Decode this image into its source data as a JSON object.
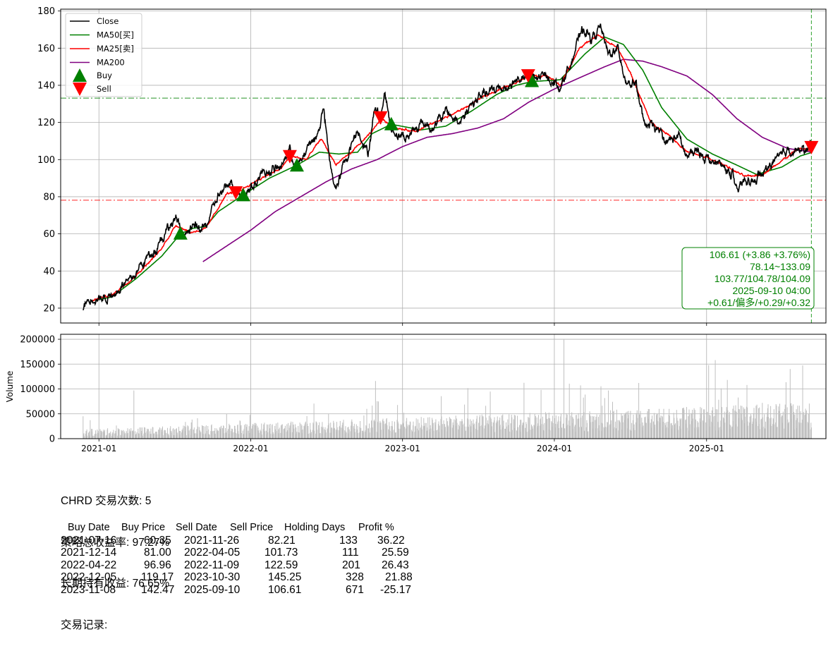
{
  "chart_data": [
    {
      "type": "line",
      "panel": "price",
      "ylim": [
        12,
        181
      ],
      "yticks": [
        20,
        40,
        60,
        80,
        100,
        120,
        140,
        160,
        180
      ],
      "grid": true,
      "legend_placement": "top-left",
      "legend": [
        "Close",
        "MA50[买]",
        "MA25[卖]",
        "MA200",
        "Buy",
        "Sell"
      ],
      "colors": {
        "close": "#000000",
        "ma50": "#008000",
        "ma25": "#ff0000",
        "ma200": "#800080",
        "buy": "#008000",
        "sell": "#ff0000",
        "grid": "#b0b0b0"
      },
      "close_anchors": [
        [
          "2020-11-24",
          20
        ],
        [
          "2020-12-15",
          25
        ],
        [
          "2021-01-15",
          25
        ],
        [
          "2021-02-15",
          30
        ],
        [
          "2021-03-15",
          38
        ],
        [
          "2021-04-15",
          44
        ],
        [
          "2021-05-15",
          52
        ],
        [
          "2021-06-15",
          62
        ],
        [
          "2021-07-10",
          67
        ],
        [
          "2021-07-20",
          58
        ],
        [
          "2021-08-15",
          62
        ],
        [
          "2021-09-15",
          66
        ],
        [
          "2021-10-15",
          80
        ],
        [
          "2021-11-10",
          86
        ],
        [
          "2021-11-26",
          82
        ],
        [
          "2021-12-14",
          80
        ],
        [
          "2022-01-15",
          91
        ],
        [
          "2022-02-15",
          93
        ],
        [
          "2022-03-15",
          97
        ],
        [
          "2022-04-05",
          104
        ],
        [
          "2022-04-22",
          95
        ],
        [
          "2022-05-15",
          105
        ],
        [
          "2022-06-10",
          113
        ],
        [
          "2022-06-25",
          127
        ],
        [
          "2022-07-10",
          98
        ],
        [
          "2022-07-25",
          85
        ],
        [
          "2022-08-15",
          100
        ],
        [
          "2022-09-15",
          116
        ],
        [
          "2022-10-10",
          104
        ],
        [
          "2022-10-25",
          125
        ],
        [
          "2022-11-09",
          123
        ],
        [
          "2022-11-20",
          135
        ],
        [
          "2022-12-05",
          117
        ],
        [
          "2022-12-20",
          114
        ],
        [
          "2023-01-15",
          112
        ],
        [
          "2023-02-15",
          120
        ],
        [
          "2023-03-15",
          118
        ],
        [
          "2023-04-15",
          125
        ],
        [
          "2023-05-15",
          120
        ],
        [
          "2023-06-15",
          131
        ],
        [
          "2023-07-15",
          134
        ],
        [
          "2023-08-15",
          138
        ],
        [
          "2023-09-15",
          141
        ],
        [
          "2023-10-15",
          145
        ],
        [
          "2023-10-30",
          145
        ],
        [
          "2023-11-15",
          143
        ],
        [
          "2023-12-15",
          146
        ],
        [
          "2024-01-15",
          140
        ],
        [
          "2024-02-15",
          155
        ],
        [
          "2024-03-10",
          170
        ],
        [
          "2024-04-01",
          165
        ],
        [
          "2024-04-20",
          171
        ],
        [
          "2024-05-10",
          157
        ],
        [
          "2024-06-01",
          160
        ],
        [
          "2024-06-20",
          143
        ],
        [
          "2024-07-15",
          140
        ],
        [
          "2024-08-05",
          117
        ],
        [
          "2024-09-01",
          118
        ],
        [
          "2024-10-01",
          110
        ],
        [
          "2024-10-25",
          113
        ],
        [
          "2024-11-15",
          100
        ],
        [
          "2024-12-10",
          105
        ],
        [
          "2025-01-10",
          100
        ],
        [
          "2025-02-05",
          96
        ],
        [
          "2025-03-05",
          93
        ],
        [
          "2025-03-15",
          81
        ],
        [
          "2025-04-05",
          91
        ],
        [
          "2025-04-25",
          88
        ],
        [
          "2025-05-20",
          93
        ],
        [
          "2025-06-20",
          102
        ],
        [
          "2025-07-20",
          108
        ],
        [
          "2025-08-15",
          104
        ],
        [
          "2025-09-10",
          106.61
        ]
      ],
      "ma50_anchors": [
        [
          "2020-12-15",
          24
        ],
        [
          "2021-02-01",
          26
        ],
        [
          "2021-04-01",
          36
        ],
        [
          "2021-06-01",
          48
        ],
        [
          "2021-07-16",
          60
        ],
        [
          "2021-08-15",
          63
        ],
        [
          "2021-09-15",
          64
        ],
        [
          "2021-10-15",
          72
        ],
        [
          "2021-12-14",
          81
        ],
        [
          "2022-02-15",
          90
        ],
        [
          "2022-04-22",
          97
        ],
        [
          "2022-06-15",
          104
        ],
        [
          "2022-08-01",
          103
        ],
        [
          "2022-09-15",
          104
        ],
        [
          "2022-10-20",
          114
        ],
        [
          "2022-12-05",
          119
        ],
        [
          "2023-02-15",
          116
        ],
        [
          "2023-04-15",
          118
        ],
        [
          "2023-06-15",
          126
        ],
        [
          "2023-08-15",
          135
        ],
        [
          "2023-10-01",
          140
        ],
        [
          "2023-11-08",
          142
        ],
        [
          "2024-01-15",
          143
        ],
        [
          "2024-03-15",
          157
        ],
        [
          "2024-05-01",
          166
        ],
        [
          "2024-06-15",
          162
        ],
        [
          "2024-08-01",
          148
        ],
        [
          "2024-09-15",
          128
        ],
        [
          "2024-11-15",
          111
        ],
        [
          "2025-01-15",
          103
        ],
        [
          "2025-03-15",
          97
        ],
        [
          "2025-05-01",
          92
        ],
        [
          "2025-07-01",
          96
        ],
        [
          "2025-08-15",
          102
        ],
        [
          "2025-09-10",
          103.77
        ]
      ],
      "ma25_anchors": [
        [
          "2020-12-15",
          24
        ],
        [
          "2021-02-01",
          27
        ],
        [
          "2021-04-01",
          38
        ],
        [
          "2021-06-01",
          52
        ],
        [
          "2021-07-05",
          65
        ],
        [
          "2021-08-10",
          61
        ],
        [
          "2021-09-15",
          63
        ],
        [
          "2021-11-05",
          82
        ],
        [
          "2021-11-26",
          82
        ],
        [
          "2022-01-15",
          89
        ],
        [
          "2022-03-15",
          95
        ],
        [
          "2022-04-05",
          102
        ],
        [
          "2022-05-15",
          100
        ],
        [
          "2022-06-20",
          111
        ],
        [
          "2022-07-25",
          97
        ],
        [
          "2022-09-01",
          104
        ],
        [
          "2022-10-20",
          115
        ],
        [
          "2022-11-09",
          122
        ],
        [
          "2022-12-20",
          117
        ],
        [
          "2023-02-01",
          115
        ],
        [
          "2023-04-01",
          121
        ],
        [
          "2023-06-01",
          128
        ],
        [
          "2023-08-01",
          136
        ],
        [
          "2023-09-15",
          140
        ],
        [
          "2023-10-30",
          145
        ],
        [
          "2023-12-15",
          145
        ],
        [
          "2024-01-15",
          140
        ],
        [
          "2024-03-01",
          160
        ],
        [
          "2024-04-15",
          167
        ],
        [
          "2024-06-01",
          160
        ],
        [
          "2024-07-01",
          147
        ],
        [
          "2024-08-20",
          120
        ],
        [
          "2024-10-10",
          112
        ],
        [
          "2024-11-15",
          104
        ],
        [
          "2024-12-20",
          102
        ],
        [
          "2025-02-15",
          97
        ],
        [
          "2025-04-01",
          91
        ],
        [
          "2025-05-15",
          92
        ],
        [
          "2025-07-01",
          99
        ],
        [
          "2025-08-10",
          106
        ],
        [
          "2025-09-10",
          104.78
        ]
      ],
      "ma200_anchors": [
        [
          "2021-09-08",
          45
        ],
        [
          "2021-11-01",
          53
        ],
        [
          "2022-01-01",
          62
        ],
        [
          "2022-03-01",
          72
        ],
        [
          "2022-05-01",
          80
        ],
        [
          "2022-07-01",
          88
        ],
        [
          "2022-09-01",
          95
        ],
        [
          "2022-11-01",
          100
        ],
        [
          "2023-01-01",
          107
        ],
        [
          "2023-03-01",
          112
        ],
        [
          "2023-05-01",
          114
        ],
        [
          "2023-07-01",
          117
        ],
        [
          "2023-09-01",
          122
        ],
        [
          "2023-11-01",
          131
        ],
        [
          "2024-01-01",
          138
        ],
        [
          "2024-03-01",
          144
        ],
        [
          "2024-05-01",
          150
        ],
        [
          "2024-06-15",
          154
        ],
        [
          "2024-08-01",
          153
        ],
        [
          "2024-09-15",
          150
        ],
        [
          "2024-11-15",
          145
        ],
        [
          "2025-01-15",
          135
        ],
        [
          "2025-03-15",
          122
        ],
        [
          "2025-05-15",
          112
        ],
        [
          "2025-07-15",
          106
        ],
        [
          "2025-09-10",
          104.09
        ]
      ],
      "buy_markers": [
        [
          "2021-07-16",
          60.35
        ],
        [
          "2021-12-14",
          81.0
        ],
        [
          "2022-04-22",
          96.96
        ],
        [
          "2022-12-05",
          119.17
        ],
        [
          "2023-11-08",
          142.47
        ]
      ],
      "sell_markers": [
        [
          "2021-11-26",
          82.21
        ],
        [
          "2022-04-05",
          101.73
        ],
        [
          "2022-11-09",
          122.59
        ],
        [
          "2023-10-30",
          145.25
        ],
        [
          "2025-09-10",
          106.61
        ]
      ],
      "hlines": [
        {
          "y": 133.09,
          "color": "#008000"
        },
        {
          "y": 78.14,
          "color": "#ff0000"
        }
      ],
      "vline_date": "2025-09-10",
      "annotation": [
        "106.61 (+3.86 +3.76%)",
        "78.14~133.09",
        "103.77/104.78/104.09",
        "2025-09-10 04:00",
        "+0.61/偏多/+0.29/+0.32"
      ]
    },
    {
      "type": "bar",
      "panel": "volume",
      "ylabel": "Volume",
      "ylim": [
        0,
        210000
      ],
      "yticks": [
        0,
        50000,
        100000,
        150000,
        200000
      ],
      "ytick_labels": [
        "0",
        "50000",
        "100000",
        "150000",
        "200000"
      ],
      "xticks": [
        "2021-01",
        "2022-01",
        "2023-01",
        "2024-01",
        "2025-01"
      ],
      "x_range": [
        "2020-10-01",
        "2025-10-15"
      ],
      "bar_color": "#c0c0c0",
      "volume_spikes": [
        [
          "2020-11-24",
          45000
        ],
        [
          "2021-03-26",
          97000
        ],
        [
          "2022-10-28",
          116000
        ],
        [
          "2023-11-30",
          98000
        ],
        [
          "2024-01-24",
          200000
        ],
        [
          "2024-05-10",
          97000
        ],
        [
          "2025-01-06",
          148000
        ],
        [
          "2025-01-22",
          158000
        ],
        [
          "2025-02-20",
          118000
        ],
        [
          "2025-04-08",
          108000
        ]
      ]
    }
  ],
  "summary": {
    "line1": "CHRD 交易次数: 5",
    "line2": "策略总收益率: 97.27%",
    "line3": "长期持有收益: 76.65%",
    "line4": "交易记录:"
  },
  "trade_table": {
    "headers": [
      "Buy Date",
      "Buy Price",
      "Sell Date",
      "Sell Price",
      "Holding Days",
      "Profit %"
    ],
    "rows": [
      [
        "2021-07-16",
        "60.35",
        "2021-11-26",
        "82.21",
        "133",
        "36.22"
      ],
      [
        "2021-12-14",
        "81.00",
        "2022-04-05",
        "101.73",
        "111",
        "25.59"
      ],
      [
        "2022-04-22",
        "96.96",
        "2022-11-09",
        "122.59",
        "201",
        "26.43"
      ],
      [
        "2022-12-05",
        "119.17",
        "2023-10-30",
        "145.25",
        "328",
        "21.88"
      ],
      [
        "2023-11-08",
        "142.47",
        "2025-09-10",
        "106.61",
        "671",
        "-25.17"
      ]
    ]
  }
}
